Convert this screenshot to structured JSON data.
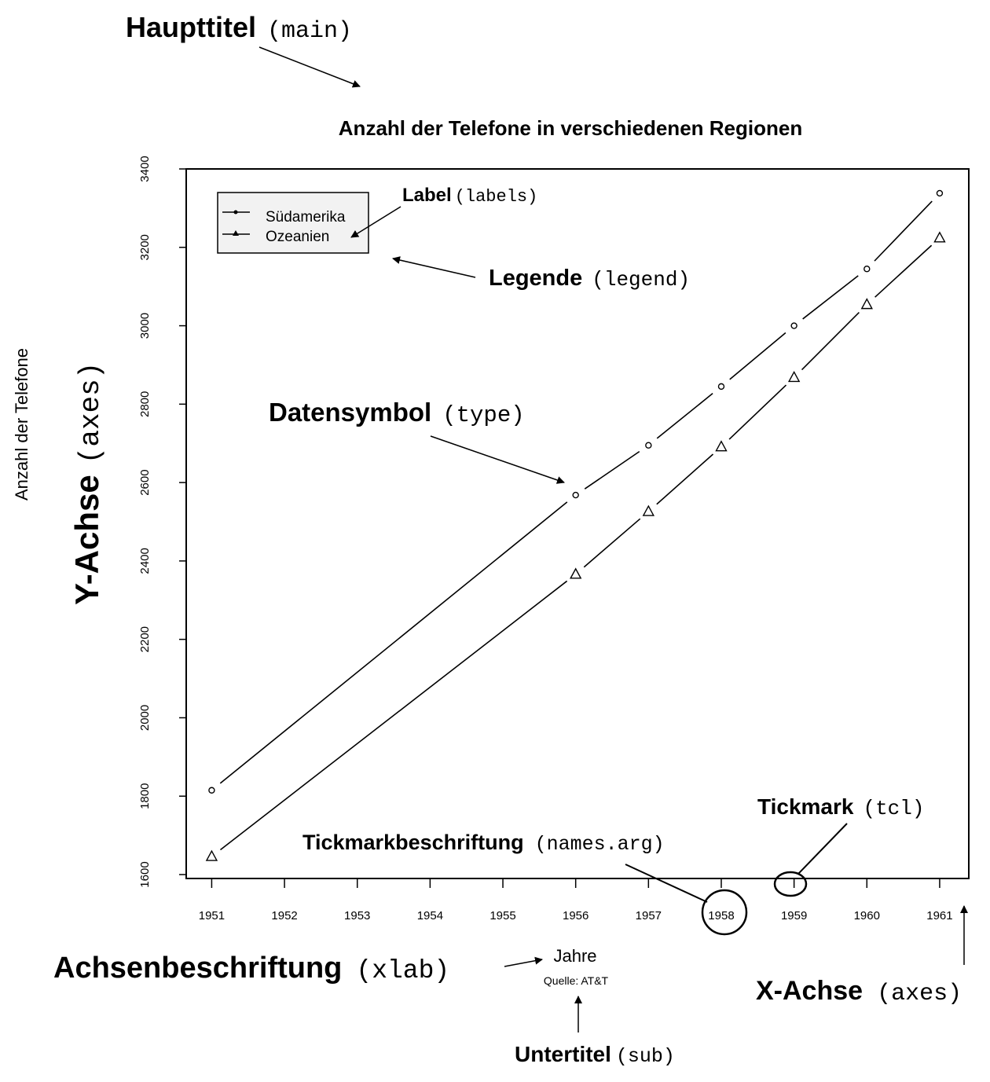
{
  "chart_data": {
    "type": "line",
    "title": "Anzahl der Telefone in verschiedenen Regionen",
    "subtitle": "Quelle: AT&T",
    "xlabel": "Jahre",
    "ylabel": "Anzahl der Telefone",
    "x": [
      1951,
      1956,
      1957,
      1958,
      1959,
      1960,
      1961
    ],
    "x_ticks": [
      1951,
      1952,
      1953,
      1954,
      1955,
      1956,
      1957,
      1958,
      1959,
      1960,
      1961
    ],
    "y_ticks": [
      1600,
      1800,
      2000,
      2200,
      2400,
      2600,
      2800,
      3000,
      3200,
      3400
    ],
    "xlim": [
      1950.65,
      1961.4
    ],
    "ylim": [
      1590,
      3400
    ],
    "grid": false,
    "legend_position": "top-left",
    "series": [
      {
        "name": "Südamerika",
        "marker": "circle",
        "values": [
          1815,
          2568,
          2695,
          2845,
          3000,
          3145,
          3338
        ]
      },
      {
        "name": "Ozeanien",
        "marker": "triangle",
        "values": [
          1646,
          2366,
          2526,
          2691,
          2868,
          3054,
          3224
        ]
      }
    ]
  },
  "annotations": {
    "main": {
      "label": "Haupttitel",
      "code": "(main)"
    },
    "labels": {
      "label": "Label",
      "code": "(labels)"
    },
    "legend": {
      "label": "Legende",
      "code": "(legend)"
    },
    "type": {
      "label": "Datensymbol",
      "code": "(type)"
    },
    "yaxis": {
      "label": "Y-Achse",
      "code": "(axes)"
    },
    "tcl": {
      "label": "Tickmark",
      "code": "(tcl)"
    },
    "names": {
      "label": "Tickmarkbeschriftung",
      "code": "(names.arg)"
    },
    "xlab": {
      "label": "Achsenbeschriftung",
      "code": "(xlab)"
    },
    "xaxis": {
      "label": "X-Achse",
      "code": "(axes)"
    },
    "sub": {
      "label": "Untertitel",
      "code": "(sub)"
    }
  }
}
